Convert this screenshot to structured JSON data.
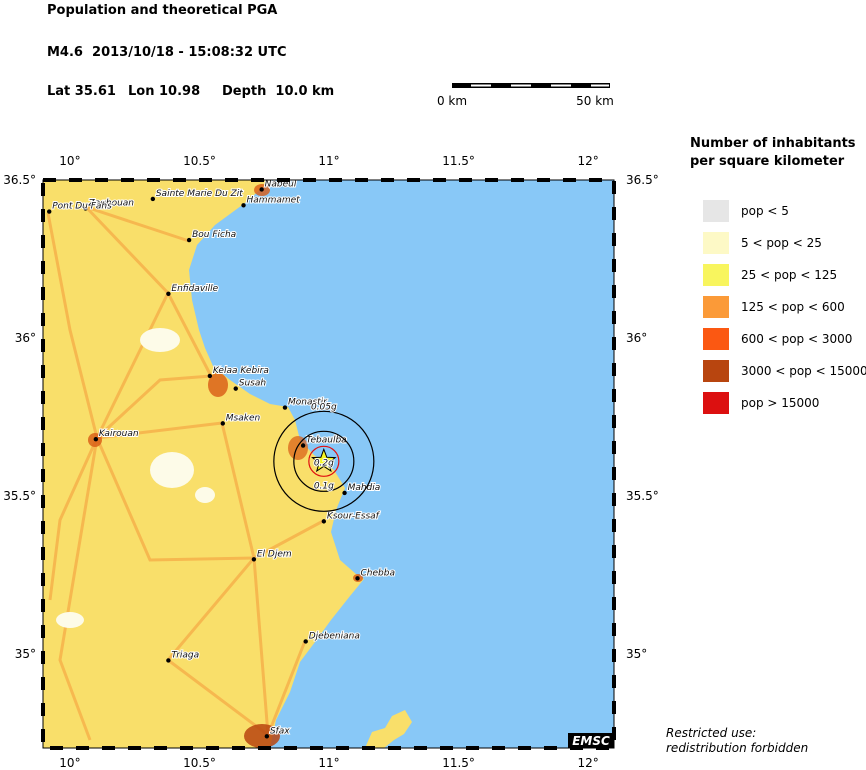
{
  "header": {
    "title": "Population and theoretical PGA",
    "event": "M4.6  2013/10/18 - 15:08:32 UTC",
    "lat": "Lat 35.61",
    "lon": "Lon 10.98",
    "depth": "Depth  10.0 km"
  },
  "scale_bar": {
    "start": "0 km",
    "end": "50 km"
  },
  "legend": {
    "title": [
      "Number of inhabitants",
      "per square kilometer"
    ],
    "items": [
      {
        "label": "pop < 5",
        "color": "#e6e6e6"
      },
      {
        "label": "5 < pop < 25",
        "color": "#fdf9c6"
      },
      {
        "label": "25 < pop < 125",
        "color": "#f8f55e"
      },
      {
        "label": "125 < pop < 600",
        "color": "#fb9a38"
      },
      {
        "label": "600 < pop < 3000",
        "color": "#fb5812"
      },
      {
        "label": "3000 < pop < 15000",
        "color": "#b8450f"
      },
      {
        "label": "pop > 15000",
        "color": "#dc1010"
      }
    ]
  },
  "map": {
    "lonlim": [
      9.896,
      12.1
    ],
    "latlim": [
      34.703,
      36.5
    ],
    "lonticks": [
      {
        "value": 10,
        "label": "10°"
      },
      {
        "value": 10.5,
        "label": "10.5°"
      },
      {
        "value": 11,
        "label": "11°"
      },
      {
        "value": 11.5,
        "label": "11.5°"
      },
      {
        "value": 12,
        "label": "12°"
      }
    ],
    "latticks": [
      {
        "value": 36.5,
        "label": "36.5°"
      },
      {
        "value": 36,
        "label": "36°"
      },
      {
        "value": 35.5,
        "label": "35.5°"
      },
      {
        "value": 35,
        "label": "35°"
      }
    ],
    "epicenter": {
      "lon": 10.98,
      "lat": 35.61
    },
    "pga_labels": [
      "0.05g",
      "0.1g",
      "0.2g"
    ],
    "cities": [
      {
        "name": "Nabeul",
        "lon": 10.74,
        "lat": 36.47
      },
      {
        "name": "Hammamet",
        "lon": 10.67,
        "lat": 36.42
      },
      {
        "name": "Sainte Marie Du Zit",
        "lon": 10.32,
        "lat": 36.44
      },
      {
        "name": "Zaghouan",
        "lon": 10.06,
        "lat": 36.41
      },
      {
        "name": "Pont Du Fahs",
        "lon": 9.92,
        "lat": 36.4
      },
      {
        "name": "Bou Ficha",
        "lon": 10.46,
        "lat": 36.31
      },
      {
        "name": "Enfidaville",
        "lon": 10.38,
        "lat": 36.14
      },
      {
        "name": "Kelaa Kebira",
        "lon": 10.54,
        "lat": 35.88
      },
      {
        "name": "Susah",
        "lon": 10.64,
        "lat": 35.84
      },
      {
        "name": "Monastir",
        "lon": 10.83,
        "lat": 35.78
      },
      {
        "name": "Msaken",
        "lon": 10.59,
        "lat": 35.73
      },
      {
        "name": "Kairouan",
        "lon": 10.1,
        "lat": 35.68
      },
      {
        "name": "Tebaulba",
        "lon": 10.9,
        "lat": 35.66
      },
      {
        "name": "Mahdia",
        "lon": 11.06,
        "lat": 35.51
      },
      {
        "name": "Ksour-Essaf",
        "lon": 10.98,
        "lat": 35.42
      },
      {
        "name": "El Djem",
        "lon": 10.71,
        "lat": 35.3
      },
      {
        "name": "Chebba",
        "lon": 11.11,
        "lat": 35.24
      },
      {
        "name": "Djebeniana",
        "lon": 10.91,
        "lat": 35.04
      },
      {
        "name": "Triaga",
        "lon": 10.38,
        "lat": 34.98
      },
      {
        "name": "Sfax",
        "lon": 10.76,
        "lat": 34.74
      }
    ]
  },
  "footer": {
    "note": [
      "Restricted use:",
      "redistribution forbidden"
    ],
    "logo": "EMSC"
  }
}
